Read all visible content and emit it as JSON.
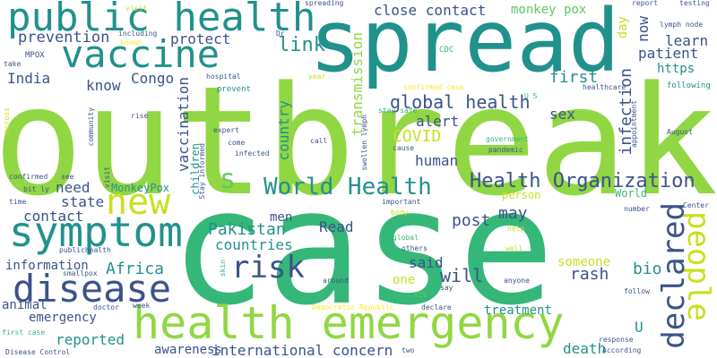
{
  "colors": {
    "background": "#ffffff",
    "palette": [
      "#440154",
      "#3b528b",
      "#21918c",
      "#35b779",
      "#5ec962",
      "#90d743",
      "#c8e020",
      "#fde725"
    ]
  },
  "words": {
    "outbreak": "outbreak",
    "case": "case",
    "spread": "spread",
    "health_emergency": "health emergency",
    "public_health": "public health",
    "vaccine": "vaccine",
    "symptom": "symptom",
    "disease": "disease",
    "world_health": "World Health",
    "health_organization": "Health Organization",
    "people": "people",
    "declared": "declared",
    "new": "new",
    "risk": "risk",
    "s": "s",
    "global_health": "global health",
    "close_contact": "close contact",
    "monkey_pox": "monkey pox",
    "prevention": "prevention",
    "protect": "protect",
    "link": "link",
    "transmission": "transmission",
    "now": "now",
    "learn": "learn",
    "patient": "patient",
    "https": "https",
    "first": "first",
    "infection": "infection",
    "sex": "sex",
    "alert": "alert",
    "covid": "COVID",
    "human": "human",
    "india": "India",
    "know": "know",
    "congo": "Congo",
    "country": "country",
    "vaccination": "vaccination",
    "children": "children",
    "need": "need",
    "state": "state",
    "contact": "contact",
    "monkeypox": "MonkeyPox",
    "pakistan": "Pakistan",
    "countries": "countries",
    "men": "men",
    "read": "Read",
    "post": "post",
    "may": "may",
    "africa": "Africa",
    "information": "information",
    "said": "said",
    "will": "will",
    "bio": "bio",
    "someone": "someone",
    "rash": "rash",
    "animal": "animal",
    "emergency": "emergency",
    "treatment": "treatment",
    "reported": "reported",
    "awareness": "awareness",
    "international_concern": "international concern",
    "death": "death",
    "u": "U",
    "one": "one",
    "day": "day",
    "world": "World",
    "person": "person",
    "mpox": "MPOX",
    "cdc": "CDC",
    "confirmed_case": "confirmed case",
    "us": "U S",
    "healthcare": "healthcare",
    "following": "following",
    "visit": "visit",
    "including": "including",
    "known": "known",
    "dr": "Dr",
    "spreading": "spreading",
    "report": "report",
    "testing": "testing",
    "lymph_node": "lymph node",
    "take": "take",
    "hospital": "hospital",
    "year": "year",
    "prevent": "prevent",
    "expert": "expert",
    "stay_safe": "stay safe",
    "stay_informed": "Stay informed",
    "come": "come",
    "call": "call",
    "infected": "infected",
    "cause": "cause",
    "swollen_lymph": "swollen lymph",
    "government": "government",
    "pandemic": "pandemic",
    "appointment": "appointment",
    "august": "August",
    "across": "across",
    "community": "community",
    "rise": "rise",
    "confirmed": "confirmed",
    "see": "see",
    "bit_ly": "bit ly",
    "time": "time",
    "publichealth": "publichealth",
    "smallpox": "smallpox",
    "important": "important",
    "body": "body",
    "global": "global",
    "others": "others",
    "help": "help",
    "well": "well",
    "center": "Center",
    "number": "number",
    "skin": "skin",
    "around": "around",
    "say": "say",
    "anyone": "anyone",
    "hiv": "HIV",
    "declare": "declare",
    "democratic_republic": "Democratic Republic",
    "doctor": "doctor",
    "week": "week",
    "first_case": "first case",
    "disease_control": "Disease Control",
    "two": "two",
    "response": "response",
    "according": "According",
    "follow": "follow"
  }
}
